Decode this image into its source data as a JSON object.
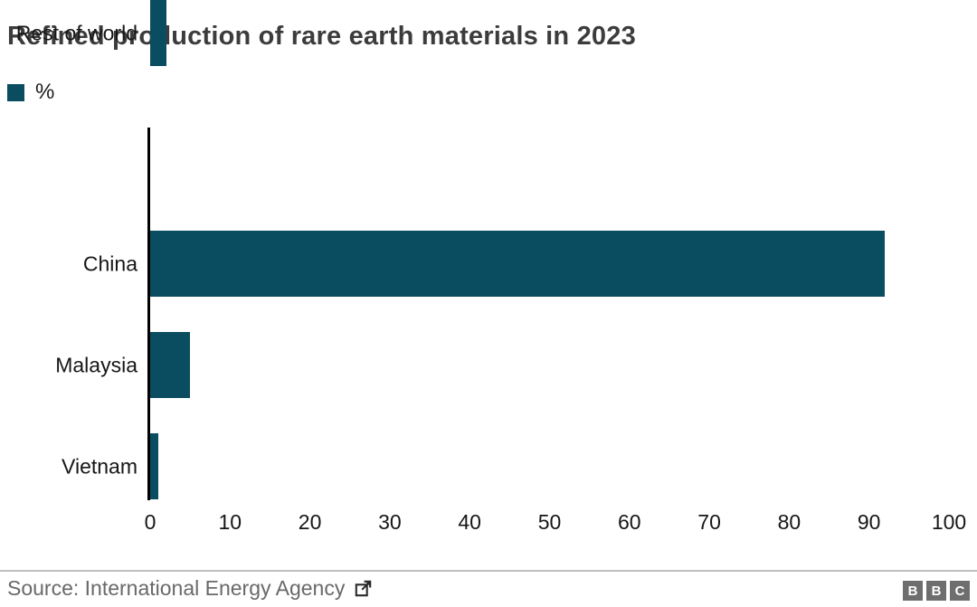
{
  "title": "Refined production of rare earth materials in 2023",
  "legend": {
    "label": "%",
    "swatch_color": "#0b4d60"
  },
  "chart_data": {
    "type": "bar",
    "orientation": "horizontal",
    "title": "Refined production of rare earth materials in 2023",
    "unit_label": "%",
    "categories": [
      "China",
      "Malaysia",
      "Vietnam",
      "Rest of world"
    ],
    "values": [
      92,
      5,
      1,
      2
    ],
    "xlim": [
      0,
      100
    ],
    "x_ticks": [
      0,
      10,
      20,
      30,
      40,
      50,
      60,
      70,
      80,
      90,
      100
    ],
    "xlabel": "",
    "ylabel": "",
    "grid": false,
    "legend_position": "top-left",
    "bar_color": "#0b4d60",
    "axis_color": "#000000"
  },
  "footer": {
    "source_label": "Source: International Energy Agency",
    "external_link_icon": "external-link-icon",
    "logo": {
      "letters": [
        "B",
        "B",
        "C"
      ],
      "block_color": "#6e6e6e",
      "letter_color": "#ffffff"
    }
  }
}
